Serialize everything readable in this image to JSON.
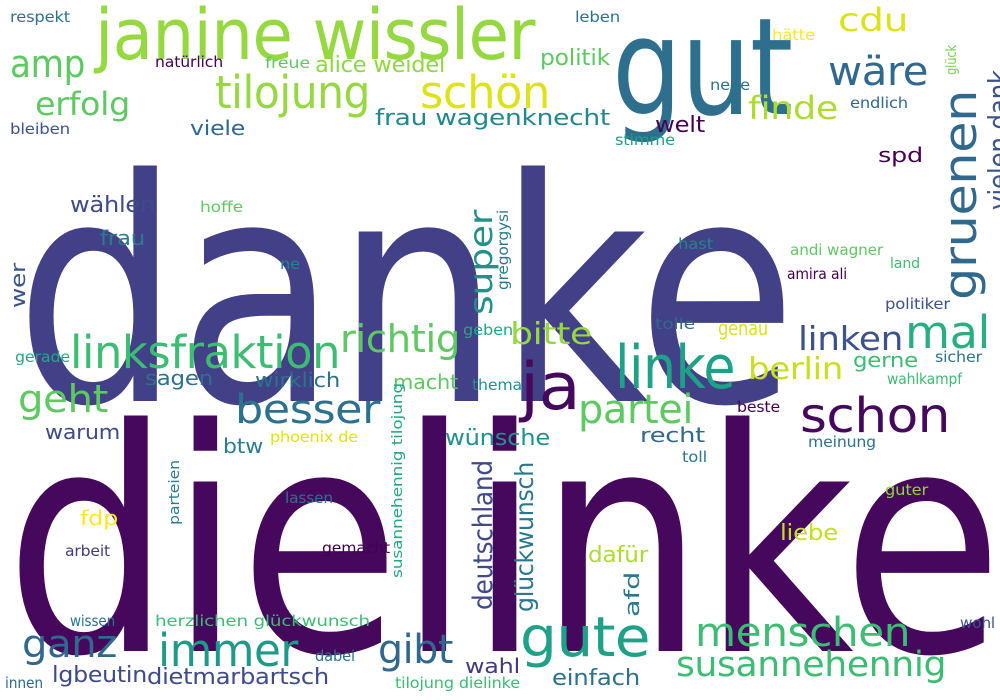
{
  "words": [
    {
      "text": "danke",
      "color": "#424086",
      "vertical": false
    },
    {
      "text": "dielinke",
      "color": "#46085c",
      "vertical": false
    },
    {
      "text": "gut",
      "color": "#2e6f8e",
      "vertical": false
    },
    {
      "text": "janine wissler",
      "color": "#95d840",
      "vertical": false
    },
    {
      "text": "ja",
      "color": "#46085c",
      "vertical": false
    },
    {
      "text": "linke",
      "color": "#1fa187",
      "vertical": false
    },
    {
      "text": "gute",
      "color": "#1fa187",
      "vertical": false
    },
    {
      "text": "linksfraktion",
      "color": "#3dbc74",
      "vertical": false
    },
    {
      "text": "schon",
      "color": "#46085c",
      "vertical": false
    },
    {
      "text": "tilojung",
      "color": "#95d840",
      "vertical": false
    },
    {
      "text": "schön",
      "color": "#dde318",
      "vertical": false
    },
    {
      "text": "mal",
      "color": "#29af7f",
      "vertical": false
    },
    {
      "text": "gruenen",
      "color": "#31688e",
      "vertical": true
    },
    {
      "text": "menschen",
      "color": "#3dbc74",
      "vertical": false
    },
    {
      "text": "susannehennig",
      "color": "#3dbc74",
      "vertical": false
    },
    {
      "text": "immer",
      "color": "#1f9a8a",
      "vertical": false
    },
    {
      "text": "partei",
      "color": "#5ec962",
      "vertical": false
    },
    {
      "text": "besser",
      "color": "#2c728e",
      "vertical": false
    },
    {
      "text": "richtig",
      "color": "#5ec962",
      "vertical": false
    },
    {
      "text": "wäre",
      "color": "#31688e",
      "vertical": false
    },
    {
      "text": "amp",
      "color": "#5ec962",
      "vertical": false
    },
    {
      "text": "geht",
      "color": "#5ec962",
      "vertical": false
    },
    {
      "text": "ganz",
      "color": "#31688e",
      "vertical": false
    },
    {
      "text": "gibt",
      "color": "#31688e",
      "vertical": false
    },
    {
      "text": "erfolg",
      "color": "#5ec962",
      "vertical": false
    },
    {
      "text": "finde",
      "color": "#addc30",
      "vertical": false
    },
    {
      "text": "linken",
      "color": "#3b528b",
      "vertical": false
    },
    {
      "text": "vielen dank",
      "color": "#3b528b",
      "vertical": true
    },
    {
      "text": "cdu",
      "color": "#dde318",
      "vertical": false
    },
    {
      "text": "super",
      "color": "#21918c",
      "vertical": true
    },
    {
      "text": "bitte",
      "color": "#95d840",
      "vertical": false
    },
    {
      "text": "berlin",
      "color": "#c8e020",
      "vertical": false
    },
    {
      "text": "deutschland",
      "color": "#3e4a89",
      "vertical": true
    },
    {
      "text": "glückwunsch",
      "color": "#2a788e",
      "vertical": true
    },
    {
      "text": "alice weidel",
      "color": "#8fd744",
      "vertical": false
    },
    {
      "text": "frau wagenknecht",
      "color": "#23888e",
      "vertical": false
    },
    {
      "text": "politik",
      "color": "#5ec962",
      "vertical": false
    },
    {
      "text": "wählen",
      "color": "#3e4a89",
      "vertical": false
    },
    {
      "text": "frau",
      "color": "#287d8e",
      "vertical": false
    },
    {
      "text": "viele",
      "color": "#31688e",
      "vertical": false
    },
    {
      "text": "welt",
      "color": "#440154",
      "vertical": false
    },
    {
      "text": "spd",
      "color": "#440154",
      "vertical": false
    },
    {
      "text": "sagen",
      "color": "#2c728e",
      "vertical": false
    },
    {
      "text": "wirklich",
      "color": "#2c728e",
      "vertical": false
    },
    {
      "text": "macht",
      "color": "#5ec962",
      "vertical": false
    },
    {
      "text": "wünsche",
      "color": "#21918c",
      "vertical": false
    },
    {
      "text": "recht",
      "color": "#31688e",
      "vertical": false
    },
    {
      "text": "genau",
      "color": "#dde318",
      "vertical": false
    },
    {
      "text": "gerne",
      "color": "#3dbc74",
      "vertical": false
    },
    {
      "text": "warum",
      "color": "#3e4a89",
      "vertical": false
    },
    {
      "text": "btw",
      "color": "#287d8e",
      "vertical": false
    },
    {
      "text": "fdp",
      "color": "#fde725",
      "vertical": false
    },
    {
      "text": "liebe",
      "color": "#c2df23",
      "vertical": false
    },
    {
      "text": "dafür",
      "color": "#addc30",
      "vertical": false
    },
    {
      "text": "afd",
      "color": "#2a788e",
      "vertical": true
    },
    {
      "text": "wahl",
      "color": "#443983",
      "vertical": false
    },
    {
      "text": "einfach",
      "color": "#2c728e",
      "vertical": false
    },
    {
      "text": "lgbeutin",
      "color": "#3e4a89",
      "vertical": false
    },
    {
      "text": "dietmarbartsch",
      "color": "#3e4a89",
      "vertical": false
    },
    {
      "text": "wer",
      "color": "#3b528b",
      "vertical": true
    },
    {
      "text": "gregorgysi",
      "color": "#2a788e",
      "vertical": true
    },
    {
      "text": "susannehennig tilojung",
      "color": "#22a884",
      "vertical": true
    },
    {
      "text": "parteien",
      "color": "#2a788e",
      "vertical": true
    },
    {
      "text": "respekt",
      "color": "#2c728e",
      "vertical": false
    },
    {
      "text": "natürlich",
      "color": "#440154",
      "vertical": false
    },
    {
      "text": "freue",
      "color": "#5ec962",
      "vertical": false
    },
    {
      "text": "leben",
      "color": "#2c728e",
      "vertical": false
    },
    {
      "text": "hätte",
      "color": "#fde725",
      "vertical": false
    },
    {
      "text": "glück",
      "color": "#7ad151",
      "vertical": true
    },
    {
      "text": "neue",
      "color": "#2c728e",
      "vertical": false
    },
    {
      "text": "endlich",
      "color": "#31688e",
      "vertical": false
    },
    {
      "text": "bleiben",
      "color": "#3b528b",
      "vertical": false
    },
    {
      "text": "stimme",
      "color": "#1fa187",
      "vertical": false
    },
    {
      "text": "hoffe",
      "color": "#5ec962",
      "vertical": false
    },
    {
      "text": "hast",
      "color": "#26828e",
      "vertical": false
    },
    {
      "text": "andi wagner",
      "color": "#5ec962",
      "vertical": false
    },
    {
      "text": "amira ali",
      "color": "#440154",
      "vertical": false
    },
    {
      "text": "land",
      "color": "#3dbc74",
      "vertical": false
    },
    {
      "text": "ne",
      "color": "#26828e",
      "vertical": false
    },
    {
      "text": "politiker",
      "color": "#3b528b",
      "vertical": false
    },
    {
      "text": "tolle",
      "color": "#31688e",
      "vertical": false
    },
    {
      "text": "geben",
      "color": "#22a884",
      "vertical": false
    },
    {
      "text": "thema",
      "color": "#21918c",
      "vertical": false
    },
    {
      "text": "sicher",
      "color": "#2c728e",
      "vertical": false
    },
    {
      "text": "wahlkampf",
      "color": "#3dbc74",
      "vertical": false
    },
    {
      "text": "gerade",
      "color": "#22a884",
      "vertical": false
    },
    {
      "text": "phoenix de",
      "color": "#dde318",
      "vertical": false
    },
    {
      "text": "beste",
      "color": "#440154",
      "vertical": false
    },
    {
      "text": "meinung",
      "color": "#2c728e",
      "vertical": false
    },
    {
      "text": "toll",
      "color": "#2a788e",
      "vertical": false
    },
    {
      "text": "guter",
      "color": "#8fd744",
      "vertical": false
    },
    {
      "text": "lassen",
      "color": "#2c728e",
      "vertical": false
    },
    {
      "text": "arbeit",
      "color": "#443983",
      "vertical": false
    },
    {
      "text": "gemacht",
      "color": "#440154",
      "vertical": false
    },
    {
      "text": "wissen",
      "color": "#2c728e",
      "vertical": false
    },
    {
      "text": "herzlichen glückwunsch",
      "color": "#3dbc74",
      "vertical": false
    },
    {
      "text": "dabei",
      "color": "#2c728e",
      "vertical": false
    },
    {
      "text": "wohl",
      "color": "#3b528b",
      "vertical": false
    },
    {
      "text": "innen",
      "color": "#31688e",
      "vertical": false
    },
    {
      "text": "tilojung dielinke",
      "color": "#3dbc74",
      "vertical": false
    }
  ]
}
